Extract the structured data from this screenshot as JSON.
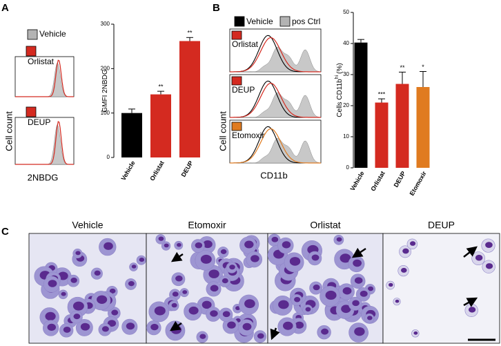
{
  "panel_labels": [
    "A",
    "B",
    "C"
  ],
  "flow_a": {
    "legend": "Vehicle",
    "legend_color": "#b3b3b3",
    "samples": [
      "Orlistat",
      "DEUP"
    ],
    "sample_colors": [
      "#d42a20",
      "#d42a20"
    ],
    "y_label": "Cell count",
    "x_label": "2NBDG"
  },
  "flow_b": {
    "legend": [
      "Vehicle",
      "pos Ctrl"
    ],
    "legend_colors": [
      "#000000",
      "#b3b3b3"
    ],
    "samples": [
      "Orlistat",
      "DEUP",
      "Etomoxir"
    ],
    "sample_colors": [
      "#d42a20",
      "#d42a20",
      "#e07b20"
    ],
    "y_label": "Cell count",
    "x_label": "CD11b"
  },
  "chart_data": [
    {
      "type": "bar",
      "y_label": "GMFI 2NBDG",
      "categories": [
        "Vehicle",
        "Orlistat",
        "DEUP"
      ],
      "values": [
        100,
        142,
        262
      ],
      "errors": [
        9,
        7,
        8
      ],
      "colors": [
        "#000000",
        "#d42a20",
        "#d42a20"
      ],
      "significance": [
        null,
        "**",
        "**"
      ],
      "ylim": [
        0,
        300
      ],
      "yticks": [
        0,
        100,
        200,
        300
      ]
    },
    {
      "type": "bar",
      "y_label": "Cells CD11b",
      "y_label_sup": "hi",
      "y_label_end": "(%)",
      "categories": [
        "Vehicle",
        "Orlistat",
        "DEUP",
        "Etomoxir"
      ],
      "values": [
        40.3,
        21,
        27,
        26
      ],
      "errors": [
        1,
        1.2,
        3.8,
        5
      ],
      "colors": [
        "#000000",
        "#d42a20",
        "#d42a20",
        "#e07b20"
      ],
      "significance": [
        null,
        "***",
        "**",
        "*"
      ],
      "ylim": [
        0,
        50
      ],
      "yticks": [
        0,
        10,
        20,
        30,
        40,
        50
      ]
    }
  ],
  "micrographs": {
    "titles": [
      "Vehicle",
      "Etomoxir",
      "Orlistat",
      "DEUP"
    ]
  }
}
